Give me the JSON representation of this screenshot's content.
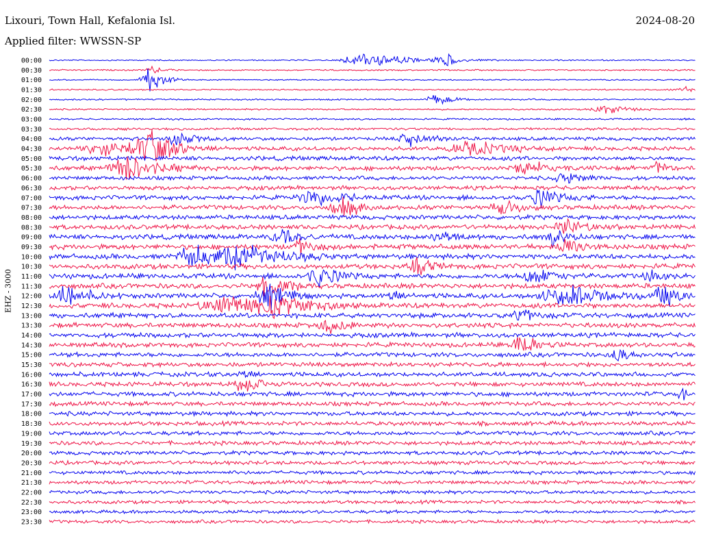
{
  "header": {
    "station": "Lixouri, Town Hall, Kefalonia Isl.",
    "filter": "Applied filter: WWSSN-SP",
    "date": "2024-08-20"
  },
  "channel_label": "EHZ - 3000",
  "colors": {
    "trace_a": "#0000ee",
    "trace_b": "#ee1144",
    "background": "#ffffff",
    "text": "#000000"
  },
  "chart_data": {
    "type": "line",
    "title": "Lixouri, Town Hall, Kefalonia Isl.",
    "subtitle": "Applied filter: WWSSN-SP",
    "ylabel": "EHZ - 3000",
    "row_labels": [
      "00:00",
      "00:30",
      "01:00",
      "01:30",
      "02:00",
      "02:30",
      "03:00",
      "03:30",
      "04:00",
      "04:30",
      "05:00",
      "05:30",
      "06:00",
      "06:30",
      "07:00",
      "07:30",
      "08:00",
      "08:30",
      "09:00",
      "09:30",
      "10:00",
      "10:30",
      "11:00",
      "11:30",
      "12:00",
      "12:30",
      "13:00",
      "13:30",
      "14:00",
      "14:30",
      "15:00",
      "15:30",
      "16:00",
      "16:30",
      "17:00",
      "17:30",
      "18:00",
      "18:30",
      "19:00",
      "19:30",
      "20:00",
      "20:30",
      "21:00",
      "21:30",
      "22:00",
      "22:30",
      "23:00",
      "23:30"
    ],
    "row_colors": [
      "#0000ee",
      "#ee1144"
    ],
    "noise_level": [
      0.05,
      0.1,
      0.05,
      0.08,
      0.12,
      0.15,
      0.18,
      0.35,
      0.6,
      0.75,
      0.8,
      0.85,
      0.7,
      0.75,
      0.85,
      0.9,
      0.85,
      0.9,
      0.95,
      1.0,
      1.0,
      1.0,
      1.0,
      1.0,
      1.0,
      1.0,
      0.95,
      0.95,
      0.9,
      0.9,
      0.85,
      0.85,
      0.85,
      0.85,
      0.85,
      0.8,
      0.8,
      0.8,
      0.75,
      0.75,
      0.7,
      0.7,
      0.65,
      0.65,
      0.6,
      0.6,
      0.55,
      0.55
    ],
    "events": [
      {
        "row": 0,
        "x": 0.5,
        "amp": 1.2,
        "dur": 0.05
      },
      {
        "row": 0,
        "x": 0.61,
        "amp": 1.4,
        "dur": 0.012
      },
      {
        "row": 1,
        "x": 0.16,
        "amp": 0.6,
        "dur": 0.01
      },
      {
        "row": 2,
        "x": 0.155,
        "amp": 2.5,
        "dur": 0.015
      },
      {
        "row": 3,
        "x": 0.98,
        "amp": 0.8,
        "dur": 0.01
      },
      {
        "row": 4,
        "x": 0.6,
        "amp": 0.8,
        "dur": 0.02
      },
      {
        "row": 5,
        "x": 0.86,
        "amp": 0.9,
        "dur": 0.02
      },
      {
        "row": 8,
        "x": 0.2,
        "amp": 1.2,
        "dur": 0.02
      },
      {
        "row": 8,
        "x": 0.56,
        "amp": 1.3,
        "dur": 0.02
      },
      {
        "row": 9,
        "x": 0.08,
        "amp": 1.2,
        "dur": 0.03
      },
      {
        "row": 9,
        "x": 0.155,
        "amp": 2.8,
        "dur": 0.03
      },
      {
        "row": 9,
        "x": 0.655,
        "amp": 1.1,
        "dur": 0.04
      },
      {
        "row": 11,
        "x": 0.12,
        "amp": 2.2,
        "dur": 0.03
      },
      {
        "row": 11,
        "x": 0.74,
        "amp": 1.3,
        "dur": 0.02
      },
      {
        "row": 11,
        "x": 0.94,
        "amp": 1.2,
        "dur": 0.01
      },
      {
        "row": 12,
        "x": 0.8,
        "amp": 0.9,
        "dur": 0.02
      },
      {
        "row": 14,
        "x": 0.41,
        "amp": 1.3,
        "dur": 0.03
      },
      {
        "row": 14,
        "x": 0.76,
        "amp": 1.6,
        "dur": 0.02
      },
      {
        "row": 15,
        "x": 0.455,
        "amp": 1.6,
        "dur": 0.02
      },
      {
        "row": 15,
        "x": 0.7,
        "amp": 1.4,
        "dur": 0.015
      },
      {
        "row": 17,
        "x": 0.8,
        "amp": 1.3,
        "dur": 0.02
      },
      {
        "row": 18,
        "x": 0.36,
        "amp": 1.2,
        "dur": 0.02
      },
      {
        "row": 18,
        "x": 0.6,
        "amp": 1.0,
        "dur": 0.02
      },
      {
        "row": 18,
        "x": 0.78,
        "amp": 1.4,
        "dur": 0.015
      },
      {
        "row": 19,
        "x": 0.39,
        "amp": 1.3,
        "dur": 0.015
      },
      {
        "row": 19,
        "x": 0.8,
        "amp": 1.6,
        "dur": 0.015
      },
      {
        "row": 20,
        "x": 0.22,
        "amp": 2.5,
        "dur": 0.02
      },
      {
        "row": 20,
        "x": 0.3,
        "amp": 2.2,
        "dur": 0.04
      },
      {
        "row": 21,
        "x": 0.57,
        "amp": 1.4,
        "dur": 0.015
      },
      {
        "row": 22,
        "x": 0.42,
        "amp": 1.8,
        "dur": 0.02
      },
      {
        "row": 22,
        "x": 0.75,
        "amp": 1.3,
        "dur": 0.02
      },
      {
        "row": 22,
        "x": 0.93,
        "amp": 1.2,
        "dur": 0.015
      },
      {
        "row": 23,
        "x": 0.34,
        "amp": 1.8,
        "dur": 0.02
      },
      {
        "row": 24,
        "x": 0.03,
        "amp": 2.0,
        "dur": 0.02
      },
      {
        "row": 24,
        "x": 0.34,
        "amp": 2.2,
        "dur": 0.02
      },
      {
        "row": 24,
        "x": 0.53,
        "amp": 1.2,
        "dur": 0.01
      },
      {
        "row": 24,
        "x": 0.8,
        "amp": 1.8,
        "dur": 0.04
      },
      {
        "row": 24,
        "x": 0.95,
        "amp": 2.0,
        "dur": 0.015
      },
      {
        "row": 25,
        "x": 0.28,
        "amp": 1.5,
        "dur": 0.05
      },
      {
        "row": 25,
        "x": 0.35,
        "amp": 1.6,
        "dur": 0.03
      },
      {
        "row": 26,
        "x": 0.73,
        "amp": 1.2,
        "dur": 0.015
      },
      {
        "row": 27,
        "x": 0.43,
        "amp": 1.6,
        "dur": 0.015
      },
      {
        "row": 29,
        "x": 0.73,
        "amp": 2.4,
        "dur": 0.015
      },
      {
        "row": 30,
        "x": 0.88,
        "amp": 1.0,
        "dur": 0.015
      },
      {
        "row": 32,
        "x": 0.3,
        "amp": 1.1,
        "dur": 0.01
      },
      {
        "row": 33,
        "x": 0.3,
        "amp": 1.7,
        "dur": 0.015
      },
      {
        "row": 34,
        "x": 0.98,
        "amp": 1.0,
        "dur": 0.01
      }
    ],
    "grid": false,
    "legend": "none"
  }
}
